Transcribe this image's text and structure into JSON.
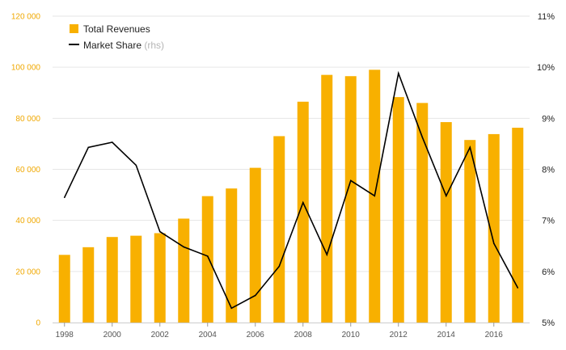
{
  "chart_data": {
    "type": "bar+line",
    "x": [
      "1998",
      "1999",
      "2000",
      "2001",
      "2002",
      "2003",
      "2004",
      "2005",
      "2006",
      "2007",
      "2008",
      "2009",
      "2010",
      "2011",
      "2012",
      "2013",
      "2014",
      "2015",
      "2016",
      "2017"
    ],
    "x_tick_labels": [
      "1998",
      "2000",
      "2002",
      "2004",
      "2006",
      "2008",
      "2010",
      "2012",
      "2014",
      "2016"
    ],
    "series": [
      {
        "name": "Total Revenues",
        "type": "bar",
        "axis": "left",
        "color": "#F8B000",
        "values": [
          26500,
          29500,
          33500,
          34000,
          35000,
          40700,
          49500,
          52500,
          60600,
          73000,
          86500,
          97000,
          96500,
          99000,
          88300,
          86000,
          78500,
          71500,
          73800,
          76300
        ]
      },
      {
        "name": "Market Share",
        "suffix": "(rhs)",
        "type": "line",
        "axis": "right",
        "color": "#000000",
        "values": [
          7.45,
          8.43,
          8.53,
          8.08,
          6.78,
          6.48,
          6.3,
          5.28,
          5.53,
          6.1,
          7.35,
          6.33,
          7.78,
          7.48,
          9.88,
          8.63,
          7.48,
          8.43,
          6.55,
          5.68
        ]
      }
    ],
    "left_axis": {
      "ylim": [
        0,
        120000
      ],
      "ticks": [
        0,
        20000,
        40000,
        60000,
        80000,
        100000,
        120000
      ],
      "tick_labels": [
        "0",
        "20 000",
        "40 000",
        "60 000",
        "80 000",
        "100 000",
        "120 000"
      ],
      "color": "#F0A800"
    },
    "right_axis": {
      "ylim": [
        5,
        11
      ],
      "ticks": [
        5,
        6,
        7,
        8,
        9,
        10,
        11
      ],
      "tick_labels": [
        "5%",
        "6%",
        "7%",
        "8%",
        "9%",
        "10%",
        "11%"
      ]
    },
    "legend": {
      "placement": "top-left",
      "entries": [
        {
          "label": "Total Revenues",
          "suffix": ""
        },
        {
          "label": "Market Share",
          "suffix": "(rhs)"
        }
      ]
    },
    "grid": true
  }
}
